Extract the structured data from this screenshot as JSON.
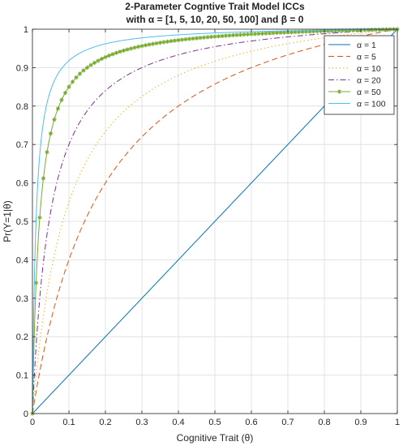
{
  "chart_data": {
    "type": "line",
    "title_line1": "2-Parameter Cogntive Trait Model ICCs",
    "title_line2": "with α = [1, 5, 10, 20, 50, 100] and β = 0",
    "xlabel": "Cognitive Trait (θ)",
    "ylabel": "Pr(Y=1|θ)",
    "xlim": [
      0,
      1
    ],
    "ylim": [
      0,
      1
    ],
    "grid": true,
    "legend_location": "top-right",
    "x_ticks": [
      "0",
      "0.1",
      "0.2",
      "0.3",
      "0.4",
      "0.5",
      "0.6",
      "0.7",
      "0.8",
      "0.9",
      "1"
    ],
    "y_ticks": [
      "0",
      "0.1",
      "0.2",
      "0.3",
      "0.4",
      "0.5",
      "0.6",
      "0.7",
      "0.8",
      "0.9",
      "1"
    ],
    "series": [
      {
        "name": "α = 1",
        "alpha": 1,
        "color": "#0072BD",
        "dash": "",
        "marker": false
      },
      {
        "name": "α = 5",
        "alpha": 5,
        "color": "#D95319",
        "dash": "7,4",
        "marker": false
      },
      {
        "name": "α = 10",
        "alpha": 10,
        "color": "#EDB120",
        "dash": "1.5,3",
        "marker": false
      },
      {
        "name": "α = 20",
        "alpha": 20,
        "color": "#7E2F8E",
        "dash": "7,3,1.5,3",
        "marker": false
      },
      {
        "name": "α = 50",
        "alpha": 50,
        "color": "#77AC30",
        "dash": "",
        "marker": true
      },
      {
        "name": "α = 100",
        "alpha": 100,
        "color": "#4DBEEE",
        "dash": "",
        "marker": false
      }
    ]
  }
}
